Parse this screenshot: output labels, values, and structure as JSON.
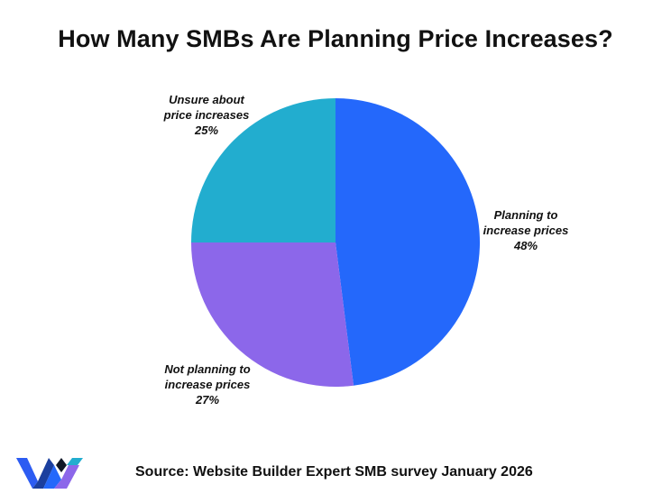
{
  "title": "How Many SMBs Are Planning Price Increases?",
  "source": "Source: Website Builder Expert SMB survey January 2026",
  "logo": {
    "icon": "website-builder-expert-logo-icon"
  },
  "chart_data": {
    "type": "pie",
    "title": "How Many SMBs Are Planning Price Increases?",
    "slices": [
      {
        "label_lines": [
          "Planning to",
          "increase prices"
        ],
        "pct_label": "48%",
        "value": 48,
        "color": "#2468fb"
      },
      {
        "label_lines": [
          "Not planning to",
          "increase prices"
        ],
        "pct_label": "27%",
        "value": 27,
        "color": "#8c67ea"
      },
      {
        "label_lines": [
          "Unsure about",
          "price increases"
        ],
        "pct_label": "25%",
        "value": 25,
        "color": "#22adcf"
      }
    ],
    "legend": "none"
  }
}
